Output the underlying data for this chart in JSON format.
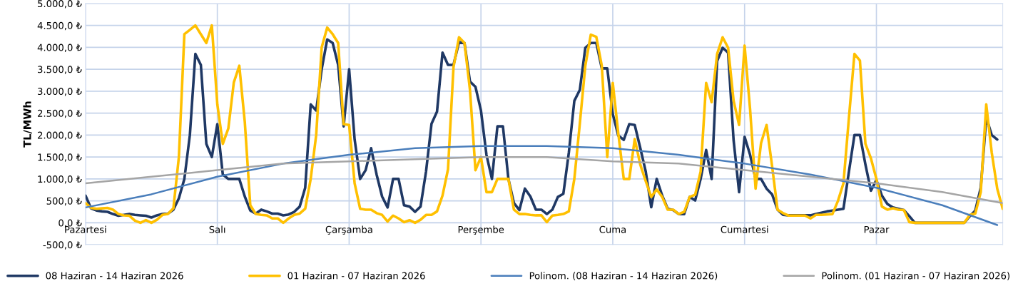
{
  "chart_data": {
    "type": "line",
    "ylabel": "TL/MWh",
    "categories": [
      "Pazartesi",
      null,
      null,
      null,
      null,
      null,
      null,
      null,
      null,
      null,
      null,
      null,
      null,
      null,
      null,
      null,
      null,
      null,
      null,
      null,
      null,
      null,
      null,
      null,
      "Salı",
      null,
      null,
      null,
      null,
      null,
      null,
      null,
      null,
      null,
      null,
      null,
      null,
      null,
      null,
      null,
      null,
      null,
      null,
      null,
      null,
      null,
      null,
      null,
      "Çarşamba",
      null,
      null,
      null,
      null,
      null,
      null,
      null,
      null,
      null,
      null,
      null,
      null,
      null,
      null,
      null,
      null,
      null,
      null,
      null,
      null,
      null,
      null,
      null,
      "Perşembe",
      null,
      null,
      null,
      null,
      null,
      null,
      null,
      null,
      null,
      null,
      null,
      null,
      null,
      null,
      null,
      null,
      null,
      null,
      null,
      null,
      null,
      null,
      null,
      "Cuma",
      null,
      null,
      null,
      null,
      null,
      null,
      null,
      null,
      null,
      null,
      null,
      null,
      null,
      null,
      null,
      null,
      null,
      null,
      null,
      null,
      null,
      null,
      null,
      "Cumartesi",
      null,
      null,
      null,
      null,
      null,
      null,
      null,
      null,
      null,
      null,
      null,
      null,
      null,
      null,
      null,
      null,
      null,
      null,
      null,
      null,
      null,
      null,
      null,
      "Pazar",
      null,
      null,
      null,
      null,
      null,
      null,
      null,
      null,
      null,
      null,
      null,
      null,
      null,
      null,
      null,
      null,
      null,
      null,
      null,
      null,
      null,
      null,
      null
    ],
    "ylim": [
      -500,
      5000
    ],
    "yticks": [
      {
        "value": -500,
        "label": "-500,0 ₺"
      },
      {
        "value": 0,
        "label": "0,0 ₺"
      },
      {
        "value": 500,
        "label": "500,0 ₺"
      },
      {
        "value": 1000,
        "label": "1.000,0 ₺"
      },
      {
        "value": 1500,
        "label": "1.500,0 ₺"
      },
      {
        "value": 2000,
        "label": "2.000,0 ₺"
      },
      {
        "value": 2500,
        "label": "2.500,0 ₺"
      },
      {
        "value": 3000,
        "label": "3.000,0 ₺"
      },
      {
        "value": 3500,
        "label": "3.500,0 ₺"
      },
      {
        "value": 4000,
        "label": "4.000,0 ₺"
      },
      {
        "value": 4500,
        "label": "4.500,0 ₺"
      },
      {
        "value": 5000,
        "label": "5.000,0 ₺"
      }
    ],
    "grid": true,
    "legend": "bottom",
    "marker": "none",
    "line_style": "solid",
    "series": [
      {
        "name": "08 Haziran - 14 Haziran 2026",
        "color": "#1f3864",
        "values": [
          620,
          330,
          280,
          260,
          250,
          200,
          160,
          180,
          200,
          180,
          170,
          160,
          120,
          170,
          200,
          210,
          300,
          560,
          1000,
          2000,
          3850,
          3600,
          1800,
          1500,
          2250,
          1100,
          1000,
          1000,
          1000,
          600,
          280,
          210,
          300,
          260,
          210,
          210,
          170,
          190,
          250,
          370,
          800,
          2700,
          2560,
          3500,
          4180,
          4100,
          3600,
          2200,
          3500,
          1900,
          1000,
          1200,
          1700,
          1100,
          600,
          350,
          1000,
          1000,
          400,
          370,
          250,
          370,
          1170,
          2260,
          2535,
          3880,
          3600,
          3600,
          4120,
          4100,
          3220,
          3100,
          2560,
          1550,
          1000,
          2200,
          2200,
          1000,
          450,
          290,
          780,
          600,
          300,
          300,
          200,
          300,
          590,
          660,
          1600,
          2780,
          3030,
          3990,
          4100,
          4100,
          3520,
          3520,
          2480,
          1990,
          1890,
          2250,
          2230,
          1710,
          1170,
          355,
          1000,
          620,
          320,
          290,
          200,
          200,
          590,
          510,
          1000,
          1660,
          1000,
          3690,
          3990,
          3880,
          1880,
          700,
          1960,
          1550,
          1000,
          1000,
          780,
          650,
          300,
          180,
          170,
          170,
          170,
          170,
          170,
          200,
          230,
          260,
          280,
          300,
          320,
          1170,
          2000,
          2000,
          1330,
          730,
          975,
          620,
          430,
          350,
          320,
          290,
          150,
          0,
          0,
          0,
          0,
          0,
          0,
          0,
          0,
          0,
          0,
          150,
          280,
          800,
          2400,
          2000,
          1900,
          null
        ]
      },
      {
        "name": "01 Haziran - 07 Haziran 2026",
        "color": "#ffc000",
        "values": [
          450,
          340,
          320,
          330,
          340,
          300,
          200,
          170,
          160,
          50,
          0,
          60,
          0,
          70,
          180,
          200,
          330,
          1500,
          4300,
          4400,
          4500,
          4300,
          4100,
          4500,
          2700,
          1800,
          2150,
          3200,
          3580,
          2300,
          400,
          200,
          180,
          170,
          100,
          100,
          0,
          100,
          180,
          210,
          320,
          1000,
          2000,
          4000,
          4450,
          4300,
          4100,
          2250,
          2230,
          900,
          320,
          300,
          300,
          220,
          180,
          30,
          165,
          100,
          15,
          60,
          0,
          70,
          180,
          180,
          260,
          620,
          1220,
          3550,
          4230,
          4100,
          3030,
          1200,
          1500,
          700,
          700,
          1000,
          1000,
          1000,
          300,
          200,
          200,
          180,
          170,
          170,
          15,
          165,
          180,
          200,
          260,
          1000,
          2260,
          3580,
          4290,
          4240,
          3580,
          1500,
          3190,
          2040,
          1000,
          1000,
          1910,
          1330,
          950,
          590,
          760,
          590,
          300,
          300,
          200,
          250,
          590,
          640,
          1170,
          3190,
          2750,
          3850,
          4230,
          3990,
          2780,
          2230,
          4040,
          2590,
          780,
          1820,
          2230,
          1300,
          300,
          220,
          165,
          165,
          165,
          165,
          100,
          180,
          180,
          190,
          200,
          500,
          900,
          2400,
          3850,
          3700,
          1800,
          1470,
          1000,
          370,
          300,
          330,
          300,
          290,
          15,
          0,
          0,
          0,
          0,
          0,
          0,
          0,
          0,
          0,
          0,
          180,
          210,
          700,
          2700,
          1600,
          780,
          320
        ]
      },
      {
        "name": "Polinom. (08 Haziran - 14 Haziran 2026)",
        "color": "#4a7ebb",
        "values": [
          350,
          null,
          null,
          null,
          null,
          null,
          null,
          null,
          null,
          null,
          null,
          null,
          650,
          null,
          null,
          null,
          null,
          null,
          null,
          null,
          null,
          null,
          null,
          null,
          1050,
          null,
          null,
          null,
          null,
          null,
          null,
          null,
          null,
          null,
          null,
          null,
          1350,
          null,
          null,
          null,
          null,
          null,
          null,
          null,
          null,
          null,
          null,
          null,
          1550,
          null,
          null,
          null,
          null,
          null,
          null,
          null,
          null,
          null,
          null,
          null,
          1700,
          null,
          null,
          null,
          null,
          null,
          null,
          null,
          null,
          null,
          null,
          null,
          1750,
          null,
          null,
          null,
          null,
          null,
          null,
          null,
          null,
          null,
          null,
          null,
          1750,
          null,
          null,
          null,
          null,
          null,
          null,
          null,
          null,
          null,
          null,
          null,
          1700,
          null,
          null,
          null,
          null,
          null,
          null,
          null,
          null,
          null,
          null,
          null,
          1550,
          null,
          null,
          null,
          null,
          null,
          null,
          null,
          null,
          null,
          null,
          null,
          1350,
          null,
          null,
          null,
          null,
          null,
          null,
          null,
          null,
          null,
          null,
          null,
          1100,
          null,
          null,
          null,
          null,
          null,
          null,
          null,
          null,
          null,
          null,
          null,
          800,
          null,
          null,
          null,
          null,
          null,
          null,
          null,
          null,
          null,
          null,
          null,
          400,
          null,
          null,
          null,
          null,
          null,
          null,
          null,
          null,
          null,
          -50,
          null
        ]
      },
      {
        "name": "Polinom. (01 Haziran - 07 Haziran 2026)",
        "color": "#a5a5a5",
        "values": [
          900,
          null,
          null,
          null,
          null,
          null,
          null,
          null,
          null,
          null,
          null,
          null,
          1050,
          null,
          null,
          null,
          null,
          null,
          null,
          null,
          null,
          null,
          null,
          null,
          1200,
          null,
          null,
          null,
          null,
          null,
          null,
          null,
          null,
          null,
          null,
          null,
          1350,
          null,
          null,
          null,
          null,
          null,
          null,
          null,
          null,
          null,
          null,
          null,
          1400,
          null,
          null,
          null,
          null,
          null,
          null,
          null,
          null,
          null,
          null,
          null,
          1450,
          null,
          null,
          null,
          null,
          null,
          null,
          null,
          null,
          null,
          null,
          null,
          1500,
          null,
          null,
          null,
          null,
          null,
          null,
          null,
          null,
          null,
          null,
          null,
          1500,
          null,
          null,
          null,
          null,
          null,
          null,
          null,
          null,
          null,
          null,
          null,
          1400,
          null,
          null,
          null,
          null,
          null,
          null,
          null,
          null,
          null,
          null,
          null,
          1350,
          null,
          null,
          null,
          null,
          null,
          null,
          null,
          null,
          null,
          null,
          null,
          1200,
          null,
          null,
          null,
          null,
          null,
          null,
          null,
          null,
          null,
          null,
          null,
          1050,
          null,
          null,
          null,
          null,
          null,
          null,
          null,
          null,
          null,
          null,
          null,
          900,
          null,
          null,
          null,
          null,
          null,
          null,
          null,
          null,
          null,
          null,
          null,
          700,
          null,
          null,
          null,
          null,
          null,
          null,
          null,
          null,
          null,
          null,
          450
        ]
      }
    ]
  }
}
